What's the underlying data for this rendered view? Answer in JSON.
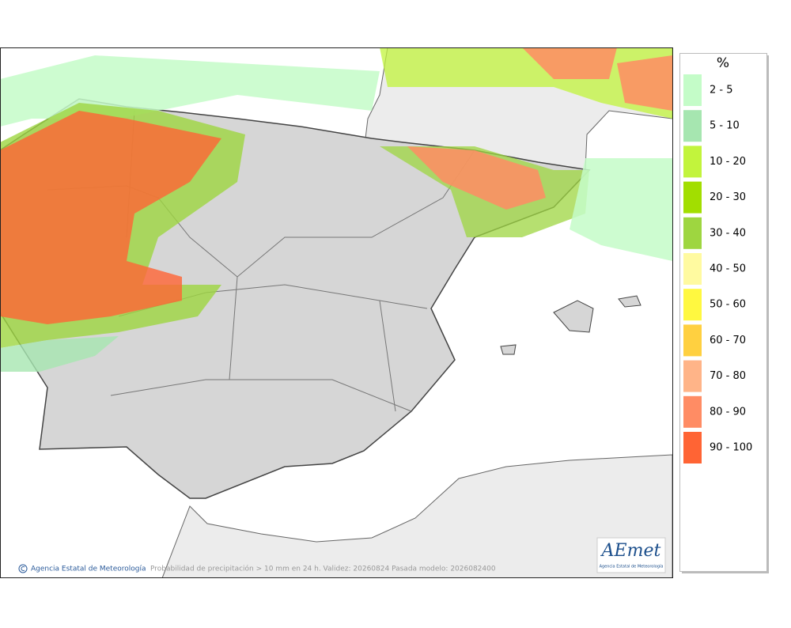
{
  "legend": {
    "title": "%",
    "items": [
      {
        "label": "2 - 5",
        "color": "#c4fcc8"
      },
      {
        "label": "5 - 10",
        "color": "#a6e6b0"
      },
      {
        "label": "10 - 20",
        "color": "#c2f43c"
      },
      {
        "label": "20 - 30",
        "color": "#a2de00"
      },
      {
        "label": "30 - 40",
        "color": "#9ed640"
      },
      {
        "label": "40 - 50",
        "color": "#fffaa0"
      },
      {
        "label": "50 - 60",
        "color": "#fff840"
      },
      {
        "label": "60 - 70",
        "color": "#ffd040"
      },
      {
        "label": "70 - 80",
        "color": "#ffb488"
      },
      {
        "label": "80 - 90",
        "color": "#ff8c64"
      },
      {
        "label": "90 - 100",
        "color": "#ff6434"
      }
    ]
  },
  "footer": {
    "credit": "Agencia Estatal de Meteorología",
    "caption": "Probabilidad de precipitación > 10 mm en 24 h. Validez: 20260824 Pasada modelo: 2026082400"
  },
  "logo": {
    "mark": "AEmet",
    "subtitle": "Agencia Estatal de Meteorología"
  }
}
